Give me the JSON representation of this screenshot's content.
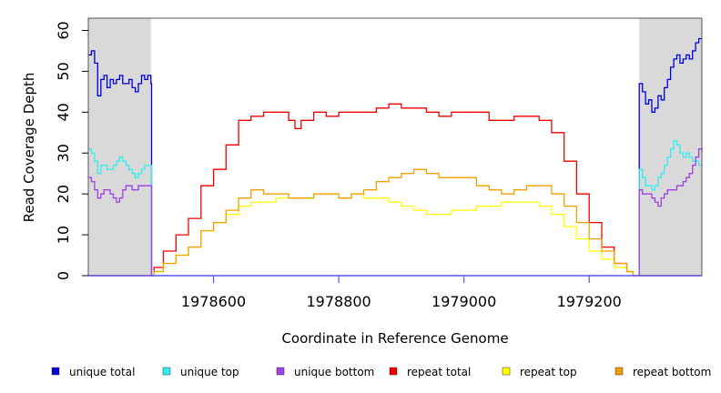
{
  "chart_data": {
    "type": "line",
    "title": "",
    "xlabel": "Coordinate in Reference Genome",
    "ylabel": "Read Coverage Depth",
    "xlim": [
      1978400,
      1979380
    ],
    "ylim": [
      0,
      63
    ],
    "xticks": [
      1978600,
      1978800,
      1979000,
      1979200
    ],
    "xtick_labels": [
      "1978600",
      "1978800",
      "1979000",
      "1979200"
    ],
    "yticks": [
      0,
      10,
      20,
      30,
      40,
      50,
      60
    ],
    "ytick_labels": [
      "0",
      "10",
      "20",
      "30",
      "40",
      "50",
      "60"
    ],
    "shaded_regions": [
      [
        1978400,
        1978500
      ],
      [
        1979280,
        1979380
      ]
    ],
    "colors": {
      "unique_total": "#0000dd",
      "unique_top": "#33eeee",
      "unique_bottom": "#a040e0",
      "repeat_total": "#ee0000",
      "repeat_top": "#ffff00",
      "repeat_bottom": "#f0a000",
      "shade": "#d9d9d9"
    },
    "series": [
      {
        "name": "unique total",
        "key": "unique_total",
        "segments": [
          {
            "x": [
              1978400,
              1978405,
              1978410,
              1978415,
              1978420,
              1978425,
              1978430,
              1978435,
              1978440,
              1978445,
              1978450,
              1978455,
              1978460,
              1978465,
              1978470,
              1978475,
              1978480,
              1978485,
              1978490,
              1978495,
              1978500,
              1978501
            ],
            "y": [
              54,
              55,
              52,
              44,
              48,
              49,
              46,
              48,
              47,
              48,
              49,
              47,
              47,
              48,
              46,
              45,
              47,
              49,
              48,
              49,
              47,
              0
            ]
          },
          {
            "x": [
              1979279,
              1979280,
              1979285,
              1979290,
              1979295,
              1979300,
              1979305,
              1979310,
              1979315,
              1979320,
              1979325,
              1979330,
              1979335,
              1979340,
              1979345,
              1979350,
              1979355,
              1979360,
              1979365,
              1979370,
              1979375,
              1979380
            ],
            "y": [
              0,
              47,
              45,
              42,
              43,
              40,
              41,
              44,
              43,
              46,
              48,
              51,
              53,
              54,
              52,
              53,
              54,
              53,
              55,
              57,
              58,
              58
            ]
          }
        ]
      },
      {
        "name": "unique top",
        "key": "unique_top",
        "segments": [
          {
            "x": [
              1978400,
              1978405,
              1978410,
              1978415,
              1978420,
              1978425,
              1978430,
              1978435,
              1978440,
              1978445,
              1978450,
              1978455,
              1978460,
              1978465,
              1978470,
              1978475,
              1978480,
              1978485,
              1978490,
              1978495,
              1978500,
              1978501
            ],
            "y": [
              31,
              30,
              28,
              25,
              27,
              27,
              26,
              26,
              27,
              28,
              29,
              28,
              27,
              26,
              25,
              24,
              25,
              26,
              27,
              27,
              27,
              0
            ]
          },
          {
            "x": [
              1979279,
              1979280,
              1979285,
              1979290,
              1979295,
              1979300,
              1979305,
              1979310,
              1979315,
              1979320,
              1979325,
              1979330,
              1979335,
              1979340,
              1979345,
              1979350,
              1979355,
              1979360,
              1979365,
              1979370,
              1979375,
              1979380
            ],
            "y": [
              0,
              26,
              24,
              22,
              22,
              21,
              22,
              24,
              25,
              27,
              29,
              31,
              33,
              32,
              30,
              29,
              30,
              29,
              28,
              28,
              27,
              27
            ]
          }
        ]
      },
      {
        "name": "unique bottom",
        "key": "unique_bottom",
        "segments": [
          {
            "x": [
              1978400,
              1978405,
              1978410,
              1978415,
              1978420,
              1978425,
              1978430,
              1978435,
              1978440,
              1978445,
              1978450,
              1978455,
              1978460,
              1978465,
              1978470,
              1978475,
              1978480,
              1978485,
              1978490,
              1978495,
              1978500,
              1978501
            ],
            "y": [
              24,
              23,
              21,
              19,
              20,
              21,
              21,
              20,
              19,
              18,
              19,
              21,
              22,
              22,
              21,
              21,
              22,
              22,
              22,
              22,
              22,
              0
            ]
          },
          {
            "x": [
              1979279,
              1979280,
              1979285,
              1979290,
              1979295,
              1979300,
              1979305,
              1979310,
              1979315,
              1979320,
              1979325,
              1979330,
              1979335,
              1979340,
              1979345,
              1979350,
              1979355,
              1979360,
              1979365,
              1979370,
              1979375,
              1979380
            ],
            "y": [
              0,
              21,
              20,
              20,
              20,
              19,
              18,
              17,
              19,
              20,
              21,
              21,
              21,
              22,
              22,
              23,
              24,
              25,
              27,
              29,
              31,
              30
            ]
          }
        ]
      },
      {
        "name": "repeat total",
        "key": "repeat_total",
        "segments": [
          {
            "x": [
              1978400,
              1978500,
              1978505,
              1978520,
              1978540,
              1978560,
              1978580,
              1978600,
              1978620,
              1978640,
              1978660,
              1978680,
              1978700,
              1978720,
              1978730,
              1978740,
              1978760,
              1978780,
              1978800,
              1978820,
              1978840,
              1978860,
              1978880,
              1978900,
              1978920,
              1978940,
              1978960,
              1978980,
              1979000,
              1979020,
              1979040,
              1979060,
              1979080,
              1979100,
              1979120,
              1979140,
              1979160,
              1979180,
              1979200,
              1979220,
              1979240,
              1979260,
              1979270,
              1979280,
              1979380
            ],
            "y": [
              0,
              0,
              2,
              6,
              10,
              14,
              22,
              26,
              32,
              38,
              39,
              40,
              40,
              38,
              36,
              38,
              40,
              39,
              40,
              40,
              40,
              41,
              42,
              41,
              41,
              40,
              39,
              40,
              40,
              40,
              38,
              38,
              39,
              39,
              38,
              35,
              28,
              20,
              13,
              7,
              3,
              1,
              0,
              0,
              0
            ]
          }
        ]
      },
      {
        "name": "repeat top",
        "key": "repeat_top",
        "segments": [
          {
            "x": [
              1978400,
              1978500,
              1978505,
              1978520,
              1978540,
              1978560,
              1978580,
              1978600,
              1978620,
              1978640,
              1978660,
              1978680,
              1978700,
              1978720,
              1978740,
              1978760,
              1978780,
              1978800,
              1978820,
              1978840,
              1978860,
              1978880,
              1978900,
              1978920,
              1978940,
              1978960,
              1978980,
              1979000,
              1979020,
              1979040,
              1979060,
              1979080,
              1979100,
              1979120,
              1979140,
              1979160,
              1979180,
              1979200,
              1979220,
              1979240,
              1979260,
              1979270,
              1979280,
              1979380
            ],
            "y": [
              0,
              0,
              1,
              3,
              5,
              7,
              11,
              13,
              15,
              17,
              18,
              18,
              19,
              19,
              19,
              20,
              20,
              19,
              20,
              19,
              19,
              18,
              17,
              16,
              15,
              15,
              16,
              16,
              17,
              17,
              18,
              18,
              18,
              17,
              15,
              12,
              9,
              6,
              4,
              2,
              1,
              0,
              0,
              0
            ]
          }
        ]
      },
      {
        "name": "repeat bottom",
        "key": "repeat_bottom",
        "segments": [
          {
            "x": [
              1978400,
              1978500,
              1978505,
              1978520,
              1978540,
              1978560,
              1978580,
              1978600,
              1978620,
              1978640,
              1978660,
              1978680,
              1978700,
              1978720,
              1978740,
              1978760,
              1978780,
              1978800,
              1978820,
              1978840,
              1978860,
              1978880,
              1978900,
              1978920,
              1978940,
              1978960,
              1978980,
              1979000,
              1979020,
              1979040,
              1979060,
              1979080,
              1979100,
              1979120,
              1979140,
              1979160,
              1979180,
              1979200,
              1979220,
              1979240,
              1979260,
              1979270,
              1979280,
              1979380
            ],
            "y": [
              0,
              0,
              1,
              3,
              5,
              7,
              11,
              13,
              16,
              19,
              21,
              20,
              20,
              19,
              19,
              20,
              20,
              19,
              20,
              21,
              23,
              24,
              25,
              26,
              25,
              24,
              24,
              24,
              22,
              21,
              20,
              21,
              22,
              22,
              20,
              17,
              13,
              9,
              6,
              3,
              1,
              0,
              0,
              0
            ]
          }
        ]
      }
    ],
    "legend": {
      "position": "bottom",
      "entries": [
        {
          "label": "unique total",
          "key": "unique_total"
        },
        {
          "label": "unique top",
          "key": "unique_top"
        },
        {
          "label": "unique bottom",
          "key": "unique_bottom"
        },
        {
          "label": "repeat total",
          "key": "repeat_total"
        },
        {
          "label": "repeat top",
          "key": "repeat_top"
        },
        {
          "label": "repeat bottom",
          "key": "repeat_bottom"
        }
      ]
    }
  }
}
